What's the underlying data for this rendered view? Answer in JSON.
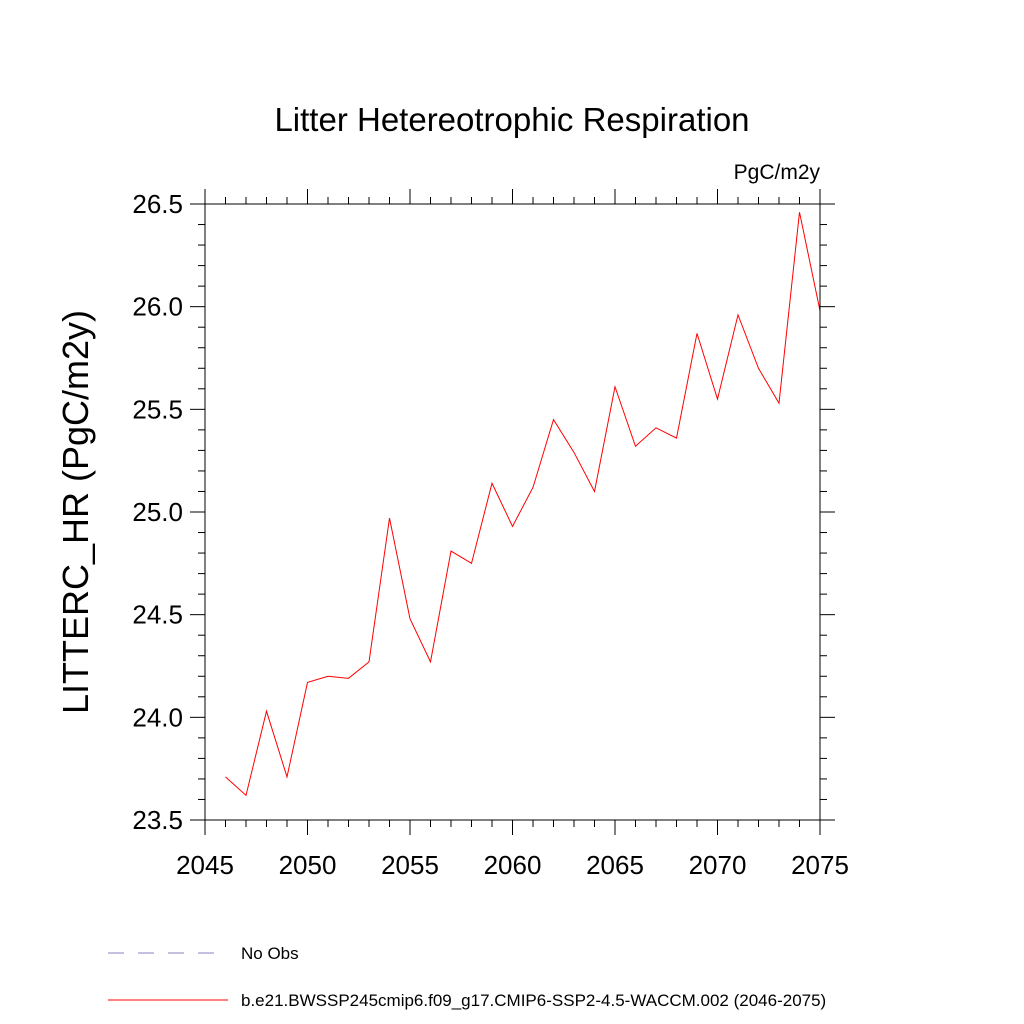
{
  "chart_data": {
    "type": "line",
    "title": "Litter Hetereotrophic Respiration",
    "units": "PgC/m2y",
    "ylabel": "LITTERC_HR  (PgC/m2y)",
    "xlabel": "",
    "xlim": [
      2045,
      2075
    ],
    "ylim": [
      23.5,
      26.5
    ],
    "xticks": [
      2045,
      2050,
      2055,
      2060,
      2065,
      2070,
      2075
    ],
    "xtick_labels": [
      "2045",
      "2050",
      "2055",
      "2060",
      "2065",
      "2070",
      "2075"
    ],
    "xminor_step": 1,
    "yticks": [
      23.5,
      24.0,
      24.5,
      25.0,
      25.5,
      26.0,
      26.5
    ],
    "ytick_labels": [
      "23.5",
      "24.0",
      "24.5",
      "25.0",
      "25.5",
      "26.0",
      "26.5"
    ],
    "yminor_step": 0.1,
    "grid": false,
    "legend_position": "bottom",
    "series": [
      {
        "name": "b.e21.BWSSP245cmip6.f09_g17.CMIP6-SSP2-4.5-WACCM.002 (2046-2075)",
        "color": "#ff0000",
        "style": "solid",
        "x": [
          2046,
          2047,
          2048,
          2049,
          2050,
          2051,
          2052,
          2053,
          2054,
          2055,
          2056,
          2057,
          2058,
          2059,
          2060,
          2061,
          2062,
          2063,
          2064,
          2065,
          2066,
          2067,
          2068,
          2069,
          2070,
          2071,
          2072,
          2073,
          2074,
          2075
        ],
        "y": [
          23.71,
          23.62,
          24.03,
          23.71,
          24.17,
          24.2,
          24.19,
          24.27,
          24.97,
          24.48,
          24.27,
          24.81,
          24.75,
          25.14,
          24.93,
          25.12,
          25.45,
          25.29,
          25.1,
          25.61,
          25.32,
          25.41,
          25.36,
          25.87,
          25.55,
          25.96,
          25.7,
          25.53,
          26.46,
          25.98
        ]
      }
    ],
    "legend": [
      {
        "label": "No Obs",
        "color": "#8c7fbf",
        "style": "dashed"
      },
      {
        "label": "b.e21.BWSSP245cmip6.f09_g17.CMIP6-SSP2-4.5-WACCM.002 (2046-2075)",
        "color": "#ff0000",
        "style": "solid"
      }
    ]
  }
}
